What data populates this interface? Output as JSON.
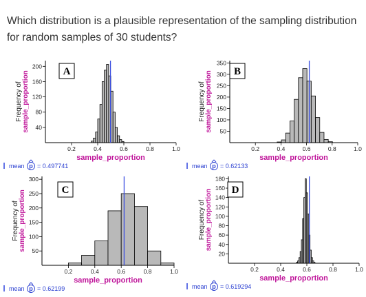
{
  "question": "Which distribution is a plausible representation of the sampling distribution for random samples of 30 students?",
  "colors": {
    "bar_fill": "#b9b9b9",
    "bar_stroke": "#000000",
    "mean_line": "#3b4fe0",
    "label_magenta": "#c0179b",
    "mean_text": "#2a3fd1"
  },
  "panels": [
    {
      "letter": "A",
      "ylabel_top": "Frequency of",
      "ylabel_bottom": "sample_proportion",
      "xlabel": "sample_proportion",
      "mean_label": "mean",
      "mean_var": "p",
      "mean_value": "= 0.497741",
      "chart_data": {
        "type": "bar",
        "xlim": [
          0,
          1.0
        ],
        "ylim": [
          0,
          215
        ],
        "xticks": [
          0.2,
          0.4,
          0.6,
          0.8,
          1.0
        ],
        "xtick_labels": [
          "0.2",
          "0.4",
          "0.6",
          "0.8",
          "1.0"
        ],
        "yticks": [
          40,
          80,
          120,
          160,
          200
        ],
        "ytick_labels": [
          "40",
          "80",
          "120",
          "160",
          "200"
        ],
        "bin_start": 0.35,
        "bin_width": 0.0167,
        "counts": [
          4,
          12,
          28,
          62,
          100,
          160,
          190,
          205,
          175,
          135,
          80,
          40,
          18,
          8,
          3
        ],
        "mean": 0.497741
      }
    },
    {
      "letter": "B",
      "ylabel_top": "Frequency of",
      "ylabel_bottom": "sample_proportion",
      "xlabel": "sample_proportion",
      "mean_label": "mean",
      "mean_var": "p",
      "mean_value": "= 0.62133",
      "chart_data": {
        "type": "bar",
        "xlim": [
          0,
          1.0
        ],
        "ylim": [
          0,
          360
        ],
        "xticks": [
          0.2,
          0.4,
          0.6,
          0.8,
          1.0
        ],
        "xtick_labels": [
          "0.2",
          "0.4",
          "0.6",
          "0.8",
          "1.0"
        ],
        "yticks": [
          50,
          100,
          150,
          200,
          250,
          300,
          350
        ],
        "ytick_labels": [
          "50",
          "100",
          "150",
          "200",
          "250",
          "300",
          "350"
        ],
        "bin_start": 0.37,
        "bin_width": 0.0333,
        "counts": [
          3,
          12,
          42,
          95,
          190,
          285,
          325,
          270,
          205,
          110,
          45,
          14,
          4
        ],
        "mean": 0.62133
      }
    },
    {
      "letter": "C",
      "ylabel_top": "Frequency of",
      "ylabel_bottom": "sample_proportion",
      "xlabel": "sample_proportion",
      "mean_label": "mean",
      "mean_var": "p",
      "mean_value": "= 0.62199",
      "chart_data": {
        "type": "bar",
        "xlim": [
          0,
          1.0
        ],
        "ylim": [
          0,
          310
        ],
        "xticks": [
          0.2,
          0.4,
          0.6,
          0.8,
          1.0
        ],
        "xtick_labels": [
          "0.2",
          "0.4",
          "0.6",
          "0.8",
          "1.0"
        ],
        "yticks": [
          50,
          100,
          150,
          200,
          250,
          300
        ],
        "ytick_labels": [
          "50",
          "100",
          "150",
          "200",
          "250",
          "300"
        ],
        "bin_start": 0.2,
        "bin_width": 0.1,
        "counts": [
          8,
          35,
          85,
          190,
          250,
          205,
          50,
          8
        ],
        "mean": 0.62199
      }
    },
    {
      "letter": "D",
      "ylabel_top": "Frequency of",
      "ylabel_bottom": "sample_proportion",
      "xlabel": "sample_proportion",
      "mean_label": "mean",
      "mean_var": "p",
      "mean_value": "= 0.619294",
      "chart_data": {
        "type": "bar",
        "xlim": [
          0,
          1.0
        ],
        "ylim": [
          0,
          185
        ],
        "xticks": [
          0.2,
          0.4,
          0.6,
          0.8,
          1.0
        ],
        "xtick_labels": [
          "0.2",
          "0.4",
          "0.6",
          "0.8",
          "1.0"
        ],
        "yticks": [
          20,
          40,
          60,
          80,
          100,
          120,
          140,
          160,
          180
        ],
        "ytick_labels": [
          "20",
          "40",
          "60",
          "80",
          "100",
          "120",
          "140",
          "160",
          "180"
        ],
        "bin_start": 0.52,
        "bin_width": 0.0095,
        "counts": [
          2,
          5,
          12,
          25,
          50,
          95,
          140,
          180,
          150,
          105,
          60,
          28,
          12,
          5,
          2
        ],
        "mean": 0.619294
      }
    }
  ]
}
